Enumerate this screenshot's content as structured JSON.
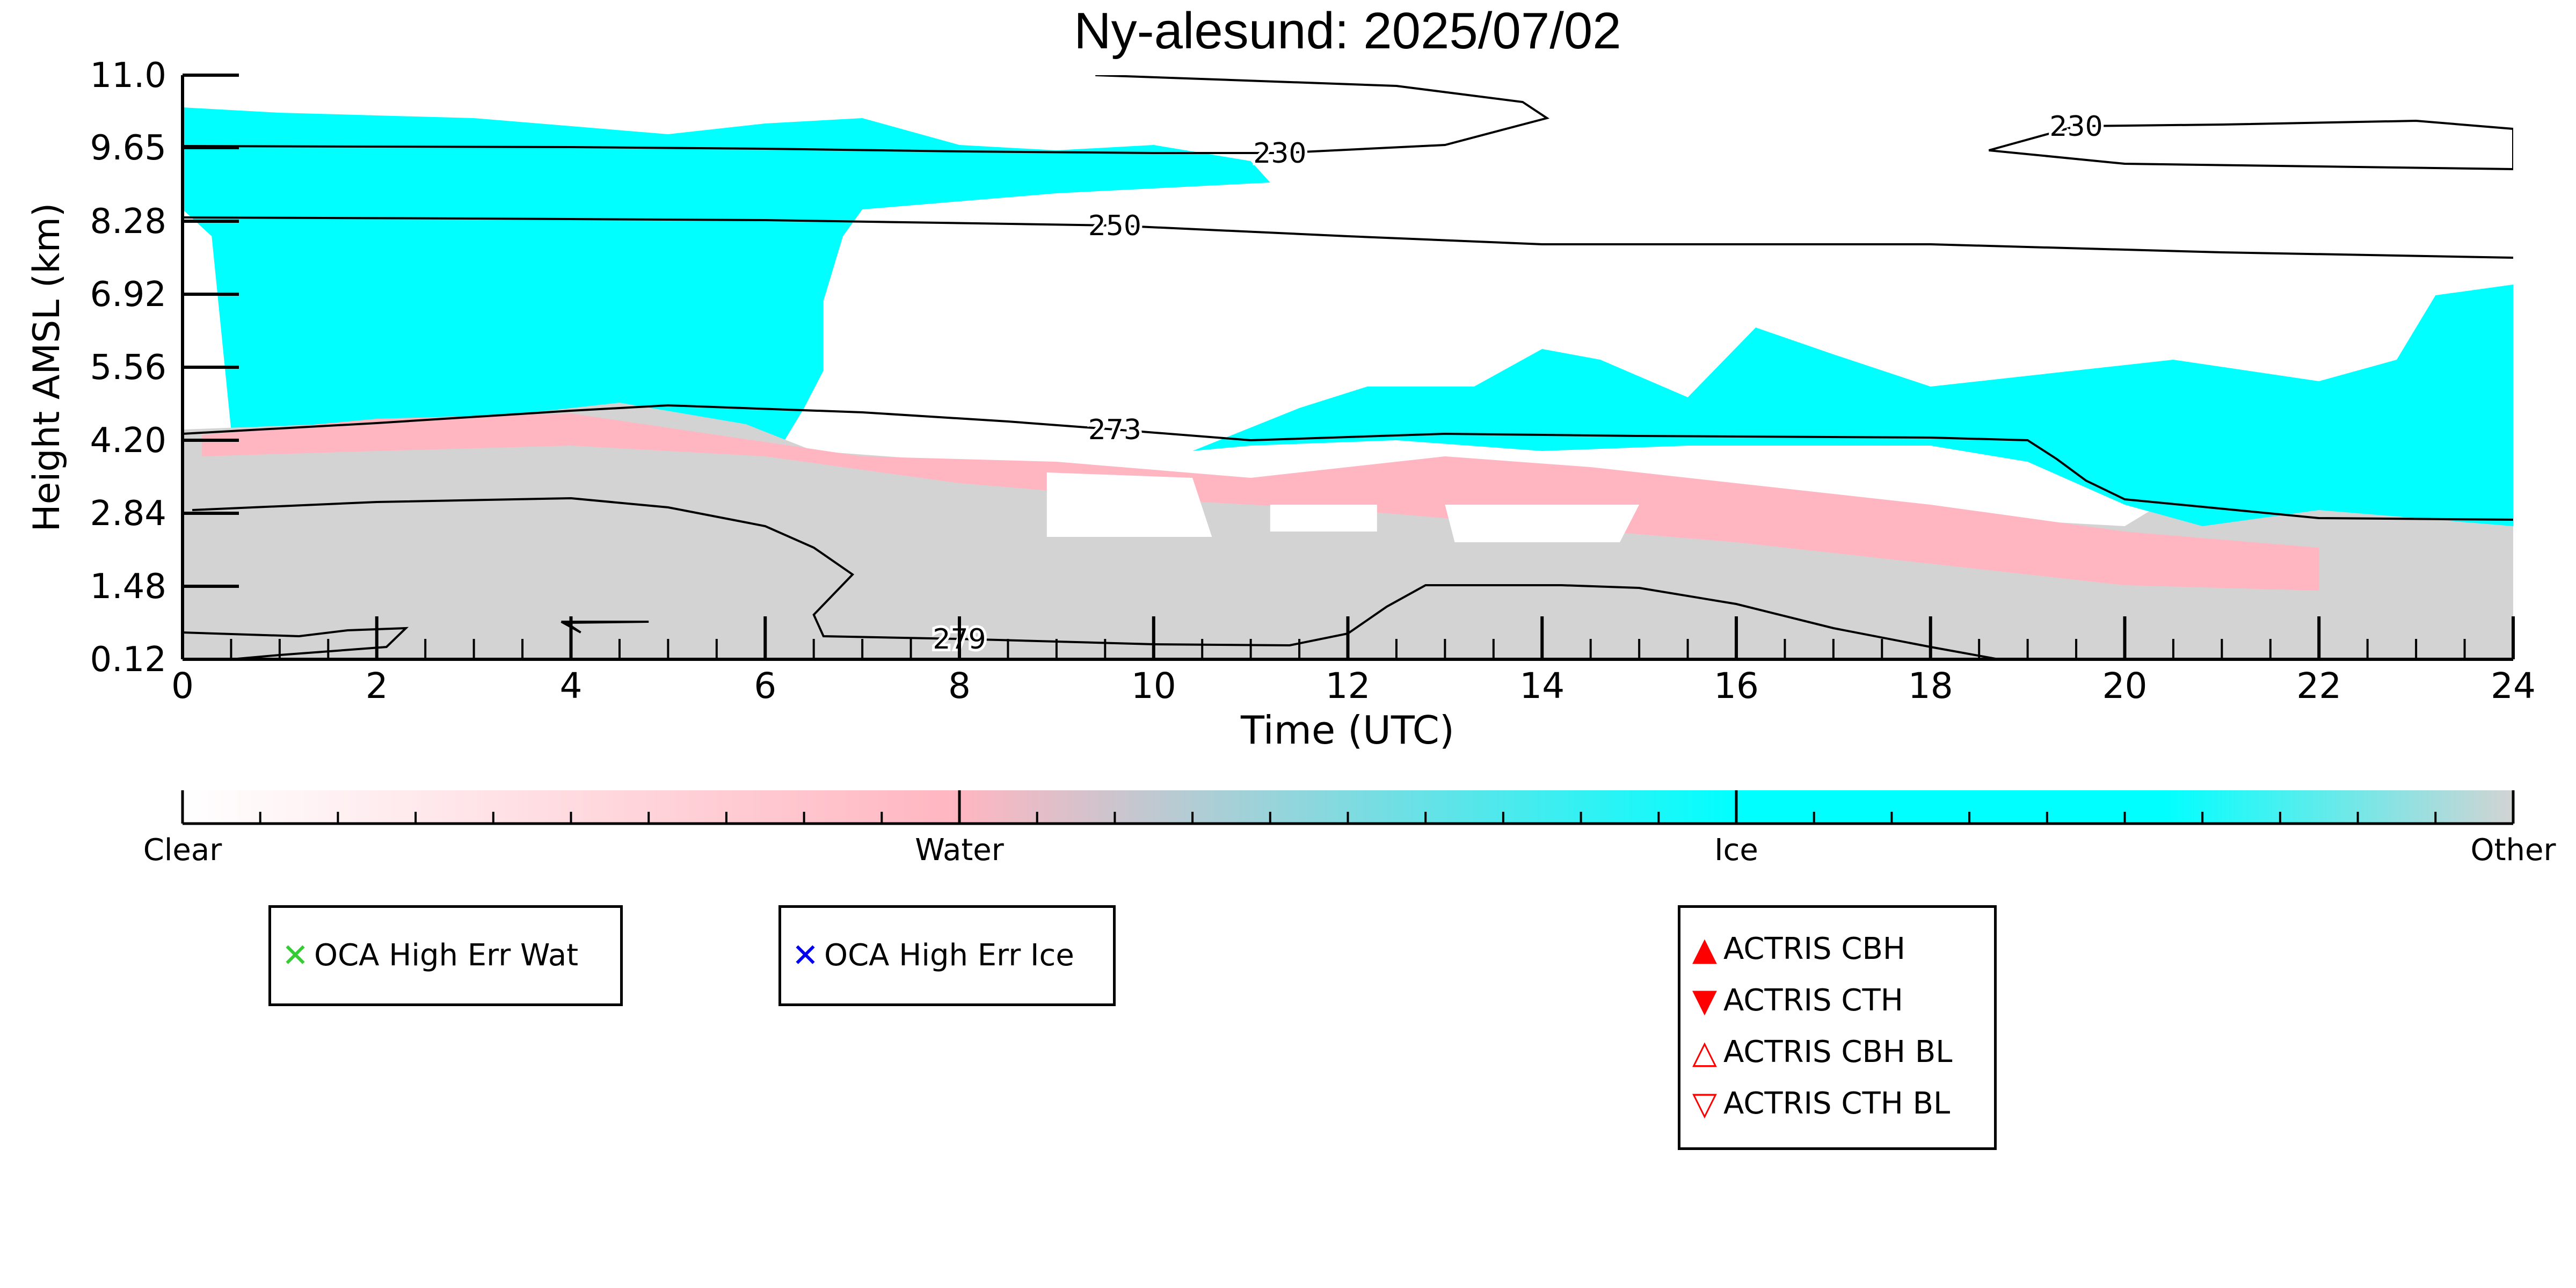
{
  "chart_data": {
    "type": "heatmap",
    "title": "Ny-alesund: 2025/07/02",
    "xlabel": "Time (UTC)",
    "ylabel": "Height AMSL (km)",
    "xlim": [
      0,
      24
    ],
    "ylim": [
      0.12,
      11.0
    ],
    "x_ticks": [
      "0",
      "2",
      "4",
      "6",
      "8",
      "10",
      "12",
      "14",
      "16",
      "18",
      "20",
      "22",
      "24"
    ],
    "y_ticks": [
      "0.12",
      "1.48",
      "2.84",
      "4.20",
      "5.56",
      "6.92",
      "8.28",
      "9.65",
      "11.0"
    ],
    "categories": [
      "Clear",
      "Water",
      "Ice",
      "Other"
    ],
    "category_colors": [
      "#ffffff",
      "#ffb6c1",
      "#00ffff",
      "#d3d3d3"
    ],
    "regions": [
      {
        "category": "Ice",
        "polygon": [
          [
            0,
            10.4
          ],
          [
            1,
            10.3
          ],
          [
            3,
            10.2
          ],
          [
            5,
            9.9
          ],
          [
            6,
            10.1
          ],
          [
            7,
            10.2
          ],
          [
            8,
            9.7
          ],
          [
            9,
            9.6
          ],
          [
            10,
            9.7
          ],
          [
            11,
            9.4
          ],
          [
            11.2,
            9.0
          ],
          [
            9,
            8.8
          ],
          [
            7,
            8.5
          ],
          [
            6.8,
            8.0
          ],
          [
            6.6,
            6.8
          ],
          [
            6.6,
            5.5
          ],
          [
            6.4,
            4.8
          ],
          [
            6.2,
            4.2
          ],
          [
            5,
            4.4
          ],
          [
            3,
            4.5
          ],
          [
            1,
            4.2
          ],
          [
            0.5,
            4.4
          ],
          [
            0.3,
            8.0
          ],
          [
            0,
            8.5
          ]
        ]
      },
      {
        "category": "Other",
        "polygon": [
          [
            0,
            4.4
          ],
          [
            1.5,
            4.5
          ],
          [
            3,
            4.6
          ],
          [
            4.5,
            4.9
          ],
          [
            5.8,
            4.5
          ],
          [
            6.5,
            4.0
          ],
          [
            8,
            3.8
          ],
          [
            10,
            3.5
          ],
          [
            11.5,
            3.2
          ],
          [
            13,
            3.4
          ],
          [
            14.5,
            3.2
          ],
          [
            16,
            3.0
          ],
          [
            18,
            2.8
          ],
          [
            20,
            2.6
          ],
          [
            21,
            3.7
          ],
          [
            22,
            3.0
          ],
          [
            24,
            2.8
          ],
          [
            24,
            0.12
          ],
          [
            0,
            0.12
          ]
        ]
      },
      {
        "category": "Water",
        "polygon": [
          [
            0.2,
            4.3
          ],
          [
            2,
            4.6
          ],
          [
            4,
            4.7
          ],
          [
            5.5,
            4.3
          ],
          [
            7,
            3.9
          ],
          [
            9,
            3.8
          ],
          [
            11,
            3.5
          ],
          [
            13,
            3.9
          ],
          [
            14.5,
            3.7
          ],
          [
            16,
            3.4
          ],
          [
            18,
            3.0
          ],
          [
            20,
            2.5
          ],
          [
            22,
            2.2
          ],
          [
            22,
            1.4
          ],
          [
            20,
            1.5
          ],
          [
            18,
            1.9
          ],
          [
            16,
            2.3
          ],
          [
            14,
            2.6
          ],
          [
            12,
            2.9
          ],
          [
            10,
            3.1
          ],
          [
            8,
            3.4
          ],
          [
            6,
            3.9
          ],
          [
            4,
            4.1
          ],
          [
            2,
            4.0
          ],
          [
            0.2,
            3.9
          ]
        ]
      },
      {
        "category": "Ice",
        "polygon": [
          [
            10.4,
            4.0
          ],
          [
            11.5,
            4.8
          ],
          [
            12.2,
            5.2
          ],
          [
            13.3,
            5.2
          ],
          [
            14,
            5.9
          ],
          [
            14.6,
            5.7
          ],
          [
            15.5,
            5.0
          ],
          [
            16.2,
            6.3
          ],
          [
            17,
            5.8
          ],
          [
            18,
            5.2
          ],
          [
            19,
            5.4
          ],
          [
            20.5,
            5.7
          ],
          [
            22,
            5.3
          ],
          [
            22.8,
            5.7
          ],
          [
            23.2,
            6.9
          ],
          [
            24,
            7.1
          ],
          [
            24,
            2.6
          ],
          [
            22,
            2.9
          ],
          [
            20.8,
            2.6
          ],
          [
            20,
            3.0
          ],
          [
            19,
            3.8
          ],
          [
            18,
            4.1
          ],
          [
            16.5,
            4.1
          ],
          [
            15.5,
            4.1
          ],
          [
            14,
            4.0
          ],
          [
            12.5,
            4.2
          ],
          [
            11,
            4.1
          ]
        ]
      },
      {
        "category": "Clear",
        "polygon": [
          [
            8.9,
            3.6
          ],
          [
            10.4,
            3.5
          ],
          [
            10.6,
            2.4
          ],
          [
            8.9,
            2.4
          ]
        ]
      },
      {
        "category": "Clear",
        "polygon": [
          [
            11.2,
            3.0
          ],
          [
            12.3,
            3.0
          ],
          [
            12.3,
            2.5
          ],
          [
            11.2,
            2.5
          ]
        ]
      },
      {
        "category": "Clear",
        "polygon": [
          [
            13.0,
            3.0
          ],
          [
            15,
            3.0
          ],
          [
            14.8,
            2.3
          ],
          [
            13.1,
            2.3
          ]
        ]
      }
    ],
    "contour_labels": [
      "230",
      "250",
      "273",
      "279",
      "230"
    ],
    "contours": [
      {
        "label": "230",
        "label_x": 11.3,
        "points": [
          [
            0,
            9.68
          ],
          [
            2,
            9.67
          ],
          [
            4,
            9.66
          ],
          [
            6,
            9.63
          ],
          [
            8,
            9.58
          ],
          [
            10,
            9.55
          ],
          [
            11.3,
            9.55
          ],
          [
            13,
            9.7
          ],
          [
            14.05,
            10.2
          ],
          [
            13.8,
            10.5
          ],
          [
            12.5,
            10.8
          ],
          [
            9.4,
            11.0
          ]
        ]
      },
      {
        "label": "250",
        "label_x": 9.6,
        "points": [
          [
            0,
            8.35
          ],
          [
            3,
            8.33
          ],
          [
            6,
            8.3
          ],
          [
            9.6,
            8.2
          ],
          [
            12,
            8.0
          ],
          [
            14,
            7.85
          ],
          [
            18,
            7.85
          ],
          [
            21,
            7.7
          ],
          [
            24,
            7.6
          ]
        ]
      },
      {
        "label": "273",
        "label_x": 9.6,
        "points": [
          [
            0,
            4.32
          ],
          [
            2,
            4.52
          ],
          [
            4,
            4.75
          ],
          [
            5,
            4.85
          ],
          [
            7,
            4.72
          ],
          [
            8.5,
            4.55
          ],
          [
            9.6,
            4.4
          ],
          [
            11,
            4.2
          ],
          [
            13,
            4.32
          ],
          [
            15,
            4.28
          ],
          [
            18,
            4.25
          ],
          [
            19,
            4.2
          ],
          [
            19.3,
            3.85
          ],
          [
            19.6,
            3.45
          ],
          [
            20,
            3.1
          ],
          [
            22,
            2.75
          ],
          [
            24,
            2.72
          ]
        ]
      },
      {
        "label": "279",
        "label_x": 8.0,
        "points": [
          [
            0.1,
            2.9
          ],
          [
            2,
            3.05
          ],
          [
            4,
            3.12
          ],
          [
            5,
            2.95
          ],
          [
            6,
            2.6
          ],
          [
            6.5,
            2.2
          ],
          [
            6.9,
            1.7
          ],
          [
            6.5,
            0.95
          ],
          [
            6.6,
            0.55
          ],
          [
            8,
            0.5
          ],
          [
            10,
            0.4
          ],
          [
            11.4,
            0.38
          ],
          [
            12,
            0.6
          ],
          [
            12.4,
            1.1
          ],
          [
            12.8,
            1.5
          ],
          [
            14.2,
            1.5
          ],
          [
            15,
            1.45
          ],
          [
            16,
            1.15
          ],
          [
            17,
            0.7
          ],
          [
            18,
            0.35
          ],
          [
            18.7,
            0.12
          ]
        ]
      },
      {
        "label": "",
        "label_x": null,
        "points": [
          [
            0,
            0.62
          ],
          [
            1.2,
            0.55
          ],
          [
            1.7,
            0.66
          ],
          [
            2.3,
            0.7
          ],
          [
            2.1,
            0.35
          ],
          [
            1.0,
            0.2
          ],
          [
            0.5,
            0.12
          ]
        ]
      },
      {
        "label": "",
        "label_x": null,
        "points": [
          [
            3.9,
            0.82
          ],
          [
            4.8,
            0.82
          ],
          [
            3.95,
            0.8
          ],
          [
            4.1,
            0.62
          ],
          [
            3.9,
            0.82
          ]
        ]
      },
      {
        "label": "230",
        "label_x": 19.5,
        "points": [
          [
            18.6,
            9.6
          ],
          [
            19.5,
            10.05
          ],
          [
            21,
            10.08
          ],
          [
            23,
            10.15
          ],
          [
            24,
            10.0
          ],
          [
            24,
            9.25
          ],
          [
            22,
            9.3
          ],
          [
            20,
            9.35
          ],
          [
            18.6,
            9.6
          ]
        ]
      }
    ],
    "colorbar": {
      "labels": [
        "Clear",
        "Water",
        "Ice",
        "Other"
      ],
      "stops": [
        {
          "pos": 0.0,
          "color": "#ffffff"
        },
        {
          "pos": 0.333,
          "color": "#ffb6c1"
        },
        {
          "pos": 0.667,
          "color": "#00ffff"
        },
        {
          "pos": 0.85,
          "color": "#00ffff"
        },
        {
          "pos": 1.0,
          "color": "#d3d3d3"
        }
      ]
    },
    "legend_groups": [
      {
        "items": [
          {
            "label": "OCA High Err Wat",
            "symbol": "✕",
            "color": "#33cc33"
          }
        ]
      },
      {
        "items": [
          {
            "label": "OCA High Err Ice",
            "symbol": "✕",
            "color": "#0000ee"
          }
        ]
      },
      {
        "items": [
          {
            "label": "ACTRIS CBH",
            "symbol": "▲",
            "color": "#ff0000"
          },
          {
            "label": "ACTRIS CTH",
            "symbol": "▼",
            "color": "#ff0000"
          },
          {
            "label": "ACTRIS CBH BL",
            "symbol": "△",
            "color": "#ff0000"
          },
          {
            "label": "ACTRIS CTH BL",
            "symbol": "▽",
            "color": "#ff0000"
          }
        ]
      }
    ]
  }
}
